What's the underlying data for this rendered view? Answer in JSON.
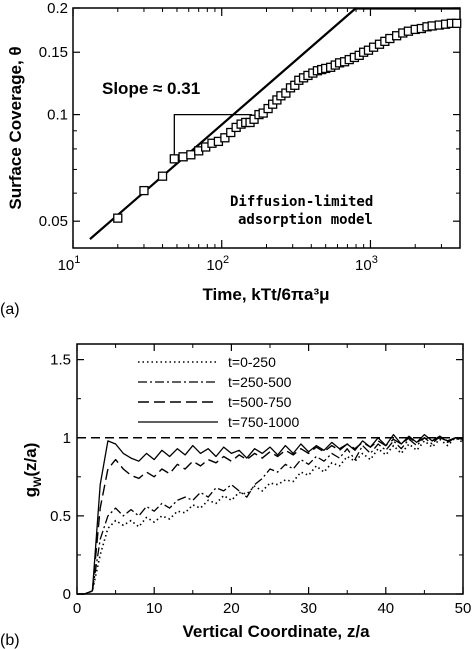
{
  "chart_data": [
    {
      "panel_label": "(a)",
      "type": "scatter",
      "xscale": "log",
      "yscale": "log",
      "xlim": [
        10,
        4000
      ],
      "ylim": [
        0.042,
        0.2
      ],
      "xticks": [
        10,
        100,
        1000
      ],
      "xtick_labels": [
        {
          "base": "10",
          "exp": "1"
        },
        {
          "base": "10",
          "exp": "2"
        },
        {
          "base": "10",
          "exp": "3"
        }
      ],
      "yticks": [
        0.05,
        0.1,
        0.15,
        0.2
      ],
      "ytick_labels": [
        "0.05",
        "0.1",
        "0.15",
        "0.2"
      ],
      "xlabel": "Time, kTt/6πa³μ",
      "ylabel": "Surface Coverage, θ",
      "annotations": {
        "slope": "Slope ≈ 0.31",
        "model_line1": "Diffusion-limited",
        "model_line2": "adsorption model"
      },
      "fit_line": {
        "x": [
          13,
          800
        ],
        "y": [
          0.0445,
          0.2
        ]
      },
      "slope_triangle": {
        "x": [
          48,
          160
        ],
        "y": [
          0.076,
          0.1
        ]
      },
      "upper_line": {
        "x": [
          800,
          4000
        ],
        "y": [
          0.2,
          0.2
        ]
      },
      "points": {
        "x": [
          20,
          30,
          40,
          48,
          55,
          62,
          70,
          78,
          86,
          95,
          105,
          115,
          125,
          135,
          145,
          155,
          165,
          178,
          190,
          205,
          220,
          235,
          250,
          270,
          290,
          310,
          330,
          355,
          380,
          410,
          440,
          470,
          500,
          540,
          580,
          620,
          670,
          720,
          780,
          840,
          900,
          970,
          1050,
          1150,
          1250,
          1350,
          1500,
          1650,
          1800,
          2000,
          2200,
          2400,
          2600,
          2900,
          3200,
          3500,
          3800
        ],
        "y": [
          0.051,
          0.061,
          0.067,
          0.075,
          0.076,
          0.077,
          0.079,
          0.081,
          0.083,
          0.084,
          0.086,
          0.089,
          0.092,
          0.094,
          0.095,
          0.095,
          0.097,
          0.1,
          0.101,
          0.104,
          0.107,
          0.11,
          0.113,
          0.115,
          0.119,
          0.121,
          0.125,
          0.127,
          0.129,
          0.131,
          0.133,
          0.134,
          0.135,
          0.136,
          0.138,
          0.14,
          0.141,
          0.143,
          0.145,
          0.147,
          0.15,
          0.152,
          0.155,
          0.158,
          0.161,
          0.164,
          0.167,
          0.17,
          0.172,
          0.174,
          0.175,
          0.177,
          0.178,
          0.179,
          0.18,
          0.181,
          0.181
        ]
      }
    },
    {
      "panel_label": "(b)",
      "type": "line",
      "xlim": [
        0,
        50
      ],
      "ylim": [
        0,
        1.6
      ],
      "xticks": [
        0,
        10,
        20,
        30,
        40,
        50
      ],
      "yticks": [
        0,
        0.5,
        1,
        1.5
      ],
      "ytick_labels": [
        "0",
        "0.5",
        "1",
        "1.5"
      ],
      "xlabel": "Vertical Coordinate, z/a",
      "ylabel": "g",
      "ylabel_sub": "W",
      "ylabel_tail": "(z/a)",
      "reference_line": {
        "y": 1,
        "label": ""
      },
      "series": [
        {
          "name": "t=0-250",
          "x": [
            0,
            1,
            2,
            3,
            4,
            5,
            6,
            7,
            8,
            9,
            10,
            11,
            12,
            13,
            14,
            15,
            16,
            17,
            18,
            19,
            20,
            21,
            22,
            23,
            24,
            25,
            26,
            27,
            28,
            29,
            30,
            31,
            32,
            33,
            34,
            35,
            36,
            37,
            38,
            39,
            40,
            41,
            42,
            43,
            44,
            45,
            46,
            47,
            48,
            49,
            50
          ],
          "y": [
            0,
            0,
            0.02,
            0.25,
            0.42,
            0.47,
            0.44,
            0.47,
            0.43,
            0.49,
            0.46,
            0.5,
            0.48,
            0.53,
            0.52,
            0.57,
            0.55,
            0.6,
            0.58,
            0.63,
            0.6,
            0.65,
            0.64,
            0.69,
            0.66,
            0.71,
            0.7,
            0.73,
            0.72,
            0.78,
            0.76,
            0.82,
            0.78,
            0.84,
            0.82,
            0.88,
            0.85,
            0.9,
            0.86,
            0.93,
            0.89,
            0.95,
            0.9,
            0.96,
            0.92,
            0.98,
            0.94,
            0.99,
            0.95,
            1.0,
            0.97
          ]
        },
        {
          "name": "t=250-500",
          "x": [
            0,
            1,
            2,
            3,
            4,
            5,
            6,
            7,
            8,
            9,
            10,
            11,
            12,
            13,
            14,
            15,
            16,
            17,
            18,
            19,
            20,
            21,
            22,
            23,
            24,
            25,
            26,
            27,
            28,
            29,
            30,
            31,
            32,
            33,
            34,
            35,
            36,
            37,
            38,
            39,
            40,
            41,
            42,
            43,
            44,
            45,
            46,
            47,
            48,
            49,
            50
          ],
          "y": [
            0,
            0,
            0.02,
            0.35,
            0.5,
            0.55,
            0.5,
            0.54,
            0.5,
            0.56,
            0.53,
            0.58,
            0.55,
            0.6,
            0.62,
            0.6,
            0.65,
            0.62,
            0.68,
            0.66,
            0.7,
            0.66,
            0.62,
            0.7,
            0.74,
            0.8,
            0.78,
            0.83,
            0.8,
            0.86,
            0.83,
            0.88,
            0.85,
            0.9,
            0.87,
            0.93,
            0.86,
            0.95,
            0.9,
            0.96,
            0.92,
            0.98,
            0.93,
            0.99,
            0.95,
            1.0,
            0.96,
            1.01,
            0.97,
            1.0,
            0.98
          ]
        },
        {
          "name": "t=500-750",
          "x": [
            0,
            1,
            2,
            3,
            4,
            5,
            6,
            7,
            8,
            9,
            10,
            11,
            12,
            13,
            14,
            15,
            16,
            17,
            18,
            19,
            20,
            21,
            22,
            23,
            24,
            25,
            26,
            27,
            28,
            29,
            30,
            31,
            32,
            33,
            34,
            35,
            36,
            37,
            38,
            39,
            40,
            41,
            42,
            43,
            44,
            45,
            46,
            47,
            48,
            49,
            50
          ],
          "y": [
            0,
            0,
            0.02,
            0.55,
            0.8,
            0.86,
            0.8,
            0.76,
            0.74,
            0.78,
            0.75,
            0.8,
            0.77,
            0.83,
            0.8,
            0.85,
            0.82,
            0.86,
            0.84,
            0.88,
            0.85,
            0.89,
            0.86,
            0.9,
            0.87,
            0.91,
            0.88,
            0.92,
            0.89,
            0.93,
            0.9,
            0.94,
            0.91,
            0.95,
            0.92,
            0.96,
            0.93,
            0.97,
            0.94,
            0.98,
            0.95,
            0.99,
            0.96,
            1.0,
            0.97,
            1.0,
            0.98,
            1.01,
            0.98,
            1.0,
            0.99
          ]
        },
        {
          "name": "t=750-1000",
          "x": [
            0,
            1,
            2,
            3,
            4,
            5,
            6,
            7,
            8,
            9,
            10,
            11,
            12,
            13,
            14,
            15,
            16,
            17,
            18,
            19,
            20,
            21,
            22,
            23,
            24,
            25,
            26,
            27,
            28,
            29,
            30,
            31,
            32,
            33,
            34,
            35,
            36,
            37,
            38,
            39,
            40,
            41,
            42,
            43,
            44,
            45,
            46,
            47,
            48,
            49,
            50
          ],
          "y": [
            0,
            0,
            0.02,
            0.7,
            0.98,
            0.96,
            0.9,
            0.87,
            0.85,
            0.9,
            0.86,
            0.92,
            0.88,
            0.93,
            0.89,
            0.95,
            0.9,
            0.93,
            0.88,
            0.94,
            0.9,
            0.92,
            0.87,
            0.93,
            0.9,
            0.94,
            0.89,
            0.95,
            0.9,
            0.96,
            0.91,
            0.95,
            0.92,
            0.97,
            0.93,
            0.96,
            0.92,
            0.98,
            0.94,
            1.0,
            0.95,
            1.02,
            0.96,
            1.01,
            0.97,
            1.02,
            0.98,
            1.0,
            0.98,
            1.0,
            0.99
          ]
        }
      ]
    }
  ]
}
